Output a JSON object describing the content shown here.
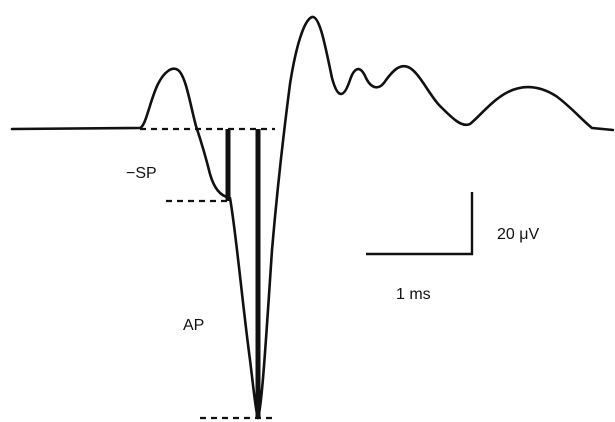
{
  "labels": {
    "sp": "−SP",
    "ap": "AP",
    "voltage_scale": "20 μV",
    "time_scale": "1 ms"
  },
  "colors": {
    "trace": "#111111",
    "background": "#ffffff"
  }
}
